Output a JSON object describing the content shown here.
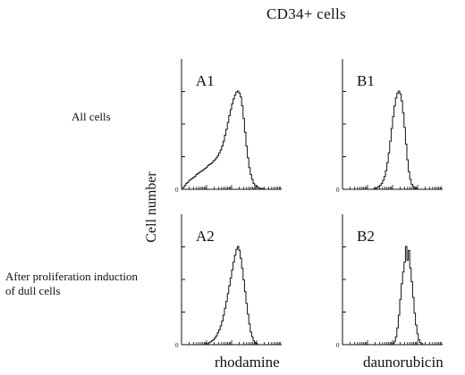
{
  "figure": {
    "title": "CD34+ cells",
    "row_labels": [
      "All cells",
      "After proliferation induction\nof dull cells"
    ],
    "y_axis_label": "Cell number",
    "column_x_labels": [
      "rhodamine",
      "daunorubicin"
    ],
    "zero_tick": "0"
  },
  "chart_data": [
    {
      "type": "area",
      "label": "A1",
      "x": [
        0,
        1,
        2,
        3,
        4,
        5,
        6,
        7,
        8,
        9,
        10,
        11,
        12,
        13,
        14,
        15,
        16,
        17,
        18,
        19,
        20,
        21,
        22,
        23,
        24,
        25,
        26,
        27,
        28,
        29,
        30,
        31,
        32,
        33,
        34,
        35,
        36,
        37,
        38,
        39,
        40,
        41,
        42,
        43,
        44,
        45,
        46,
        47,
        48,
        49,
        50,
        51,
        52,
        53,
        54,
        55,
        56,
        57,
        58,
        59,
        60,
        61,
        62,
        63,
        64,
        65,
        66,
        67,
        68,
        69,
        70
      ],
      "values": [
        0,
        2,
        4,
        6,
        7,
        9,
        10,
        11,
        12,
        13,
        15,
        16,
        17,
        18,
        19,
        20,
        21,
        22,
        24,
        25,
        26,
        27,
        29,
        30,
        32,
        34,
        37,
        40,
        44,
        49,
        55,
        61,
        68,
        75,
        81,
        87,
        92,
        96,
        99,
        100,
        98,
        94,
        85,
        72,
        58,
        44,
        32,
        22,
        15,
        10,
        6,
        4,
        3,
        2,
        1,
        1,
        1,
        0,
        0,
        0,
        0,
        0,
        0,
        0,
        0,
        0,
        0,
        0,
        0,
        0,
        0
      ]
    },
    {
      "type": "area",
      "label": "B1",
      "x": [
        0,
        1,
        2,
        3,
        4,
        5,
        6,
        7,
        8,
        9,
        10,
        11,
        12,
        13,
        14,
        15,
        16,
        17,
        18,
        19,
        20,
        21,
        22,
        23,
        24,
        25,
        26,
        27,
        28,
        29,
        30,
        31,
        32,
        33,
        34,
        35,
        36,
        37,
        38,
        39,
        40,
        41,
        42,
        43,
        44,
        45,
        46,
        47,
        48,
        49,
        50,
        51,
        52,
        53,
        54,
        55,
        56,
        57,
        58,
        59,
        60,
        61,
        62,
        63,
        64,
        65,
        66,
        67,
        68,
        69,
        70
      ],
      "values": [
        0,
        0,
        0,
        0,
        0,
        0,
        0,
        0,
        0,
        0,
        0,
        0,
        0,
        0,
        0,
        0,
        0,
        0,
        0,
        0,
        0,
        0,
        1,
        1,
        2,
        3,
        4,
        6,
        9,
        13,
        19,
        27,
        37,
        49,
        62,
        74,
        85,
        93,
        98,
        100,
        97,
        90,
        78,
        63,
        46,
        30,
        18,
        10,
        5,
        3,
        1,
        1,
        0,
        0,
        0,
        0,
        0,
        0,
        0,
        0,
        0,
        0,
        0,
        0,
        0,
        0,
        0,
        0,
        0,
        0,
        0
      ]
    },
    {
      "type": "area",
      "label": "A2",
      "x": [
        0,
        1,
        2,
        3,
        4,
        5,
        6,
        7,
        8,
        9,
        10,
        11,
        12,
        13,
        14,
        15,
        16,
        17,
        18,
        19,
        20,
        21,
        22,
        23,
        24,
        25,
        26,
        27,
        28,
        29,
        30,
        31,
        32,
        33,
        34,
        35,
        36,
        37,
        38,
        39,
        40,
        41,
        42,
        43,
        44,
        45,
        46,
        47,
        48,
        49,
        50,
        51,
        52,
        53,
        54,
        55,
        56,
        57,
        58,
        59,
        60,
        61,
        62,
        63,
        64,
        65,
        66,
        67,
        68,
        69,
        70
      ],
      "values": [
        0,
        0,
        0,
        0,
        0,
        0,
        0,
        0,
        0,
        0,
        0,
        0,
        0,
        0,
        0,
        0,
        0,
        1,
        1,
        2,
        3,
        4,
        5,
        7,
        9,
        12,
        15,
        19,
        24,
        30,
        37,
        44,
        52,
        60,
        68,
        76,
        84,
        91,
        97,
        100,
        96,
        88,
        78,
        66,
        54,
        42,
        31,
        21,
        13,
        8,
        4,
        2,
        1,
        0,
        0,
        0,
        0,
        0,
        0,
        0,
        0,
        0,
        0,
        0,
        0,
        0,
        0,
        0,
        0,
        0,
        0
      ]
    },
    {
      "type": "area",
      "label": "B2",
      "x": [
        0,
        1,
        2,
        3,
        4,
        5,
        6,
        7,
        8,
        9,
        10,
        11,
        12,
        13,
        14,
        15,
        16,
        17,
        18,
        19,
        20,
        21,
        22,
        23,
        24,
        25,
        26,
        27,
        28,
        29,
        30,
        31,
        32,
        33,
        34,
        35,
        36,
        37,
        38,
        39,
        40,
        41,
        42,
        43,
        44,
        45,
        46,
        47,
        48,
        49,
        50,
        51,
        52,
        53,
        54,
        55,
        56,
        57,
        58,
        59,
        60,
        61,
        62,
        63,
        64,
        65,
        66,
        67,
        68,
        69,
        70
      ],
      "values": [
        0,
        0,
        0,
        0,
        0,
        0,
        0,
        0,
        0,
        0,
        0,
        0,
        0,
        0,
        0,
        0,
        0,
        0,
        0,
        0,
        0,
        0,
        0,
        0,
        0,
        0,
        0,
        0,
        0,
        0,
        0,
        0,
        0,
        0,
        0,
        1,
        3,
        8,
        17,
        30,
        46,
        62,
        74,
        84,
        100,
        86,
        96,
        78,
        64,
        48,
        32,
        20,
        11,
        5,
        2,
        1,
        0,
        0,
        0,
        0,
        0,
        0,
        0,
        0,
        0,
        0,
        0,
        0,
        0,
        0,
        0
      ]
    }
  ]
}
